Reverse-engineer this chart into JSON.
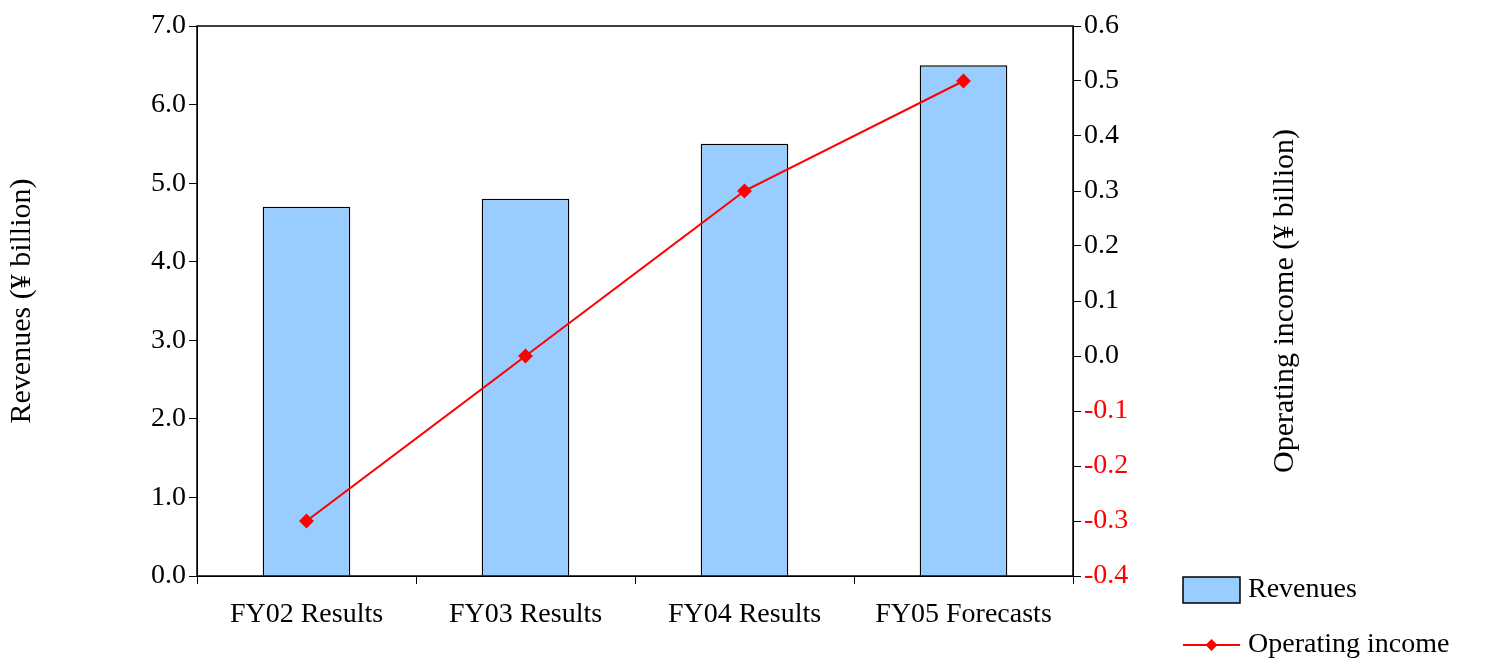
{
  "chart_data": {
    "type": "bar",
    "categories": [
      "FY02 Results",
      "FY03 Results",
      "FY04 Results",
      "FY05 Forecasts"
    ],
    "ylabel": "Revenues (¥ billion)",
    "y2label": "Operating income (¥ billion)",
    "series": [
      {
        "name": "Revenues",
        "color": "#99ccff",
        "values": [
          4.7,
          4.8,
          5.5,
          6.5
        ]
      },
      {
        "name": "Operating income",
        "type": "line",
        "axis": "y2",
        "color": "#ff0000",
        "marker": "diamond",
        "values": [
          -0.3,
          0.0,
          0.3,
          0.5
        ]
      }
    ],
    "ylim": [
      0,
      7
    ],
    "yticks": [
      {
        "value": 0,
        "label": "0.0"
      },
      {
        "value": 1,
        "label": "1.0"
      },
      {
        "value": 2,
        "label": "2.0"
      },
      {
        "value": 3,
        "label": "3.0"
      },
      {
        "value": 4,
        "label": "4.0"
      },
      {
        "value": 5,
        "label": "5.0"
      },
      {
        "value": 6,
        "label": "6.0"
      },
      {
        "value": 7,
        "label": "7.0"
      }
    ],
    "y2lim": [
      -0.4,
      0.6
    ],
    "y2ticks": [
      {
        "value": -0.4,
        "label": "-0.4"
      },
      {
        "value": -0.3,
        "label": "-0.3"
      },
      {
        "value": -0.2,
        "label": "-0.2"
      },
      {
        "value": -0.1,
        "label": "-0.1"
      },
      {
        "value": 0,
        "label": "0.0"
      },
      {
        "value": 0.1,
        "label": "0.1"
      },
      {
        "value": 0.2,
        "label": "0.2"
      },
      {
        "value": 0.3,
        "label": "0.3"
      },
      {
        "value": 0.4,
        "label": "0.4"
      },
      {
        "value": 0.5,
        "label": "0.5"
      },
      {
        "value": 0.6,
        "label": "0.6"
      }
    ],
    "grid": false,
    "legend": "bottom right"
  }
}
